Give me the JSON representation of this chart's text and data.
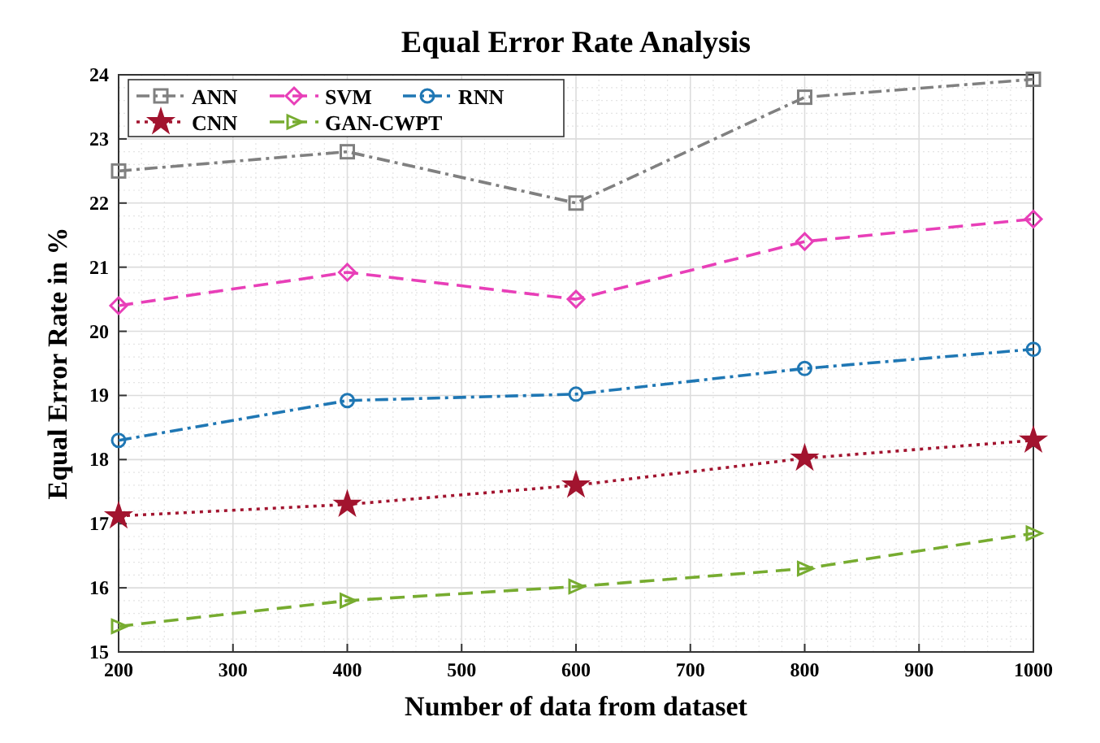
{
  "chart_data": {
    "type": "line",
    "title": "Equal Error Rate Analysis",
    "xlabel": "Number of data from dataset",
    "ylabel": "Equal Error Rate in %",
    "x": [
      200,
      400,
      600,
      800,
      1000
    ],
    "xlim": [
      200,
      1000
    ],
    "xticks": [
      200,
      300,
      400,
      500,
      600,
      700,
      800,
      900,
      1000
    ],
    "ylim": [
      15,
      24
    ],
    "yticks": [
      15,
      16,
      17,
      18,
      19,
      20,
      21,
      22,
      23,
      24
    ],
    "grid": true,
    "legend": "top left",
    "series": [
      {
        "name": "ANN",
        "color": "#808080",
        "marker": "square",
        "line_style": "dashdot",
        "values": [
          22.5,
          22.8,
          22.0,
          23.65,
          23.93
        ]
      },
      {
        "name": "SVM",
        "color": "#e83fb8",
        "marker": "diamond",
        "line_style": "dashed",
        "values": [
          20.4,
          20.92,
          20.5,
          21.4,
          21.75
        ]
      },
      {
        "name": "RNN",
        "color": "#1f77b4",
        "marker": "circle",
        "line_style": "dashdot",
        "values": [
          18.3,
          18.92,
          19.02,
          19.42,
          19.72
        ]
      },
      {
        "name": "CNN",
        "color": "#a2142f",
        "marker": "star",
        "line_style": "dotted",
        "values": [
          17.12,
          17.3,
          17.6,
          18.02,
          18.3
        ]
      },
      {
        "name": "GAN-CWPT",
        "color": "#77ac30",
        "marker": "triangle",
        "line_style": "dashed",
        "values": [
          15.4,
          15.8,
          16.02,
          16.3,
          16.85
        ]
      }
    ]
  }
}
